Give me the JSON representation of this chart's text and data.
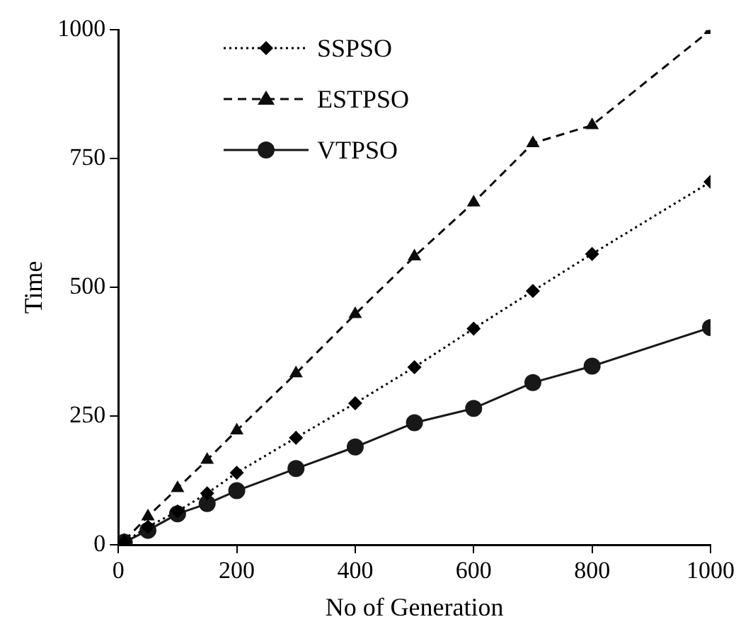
{
  "chart_data": {
    "type": "line",
    "xlabel": "No of Generation",
    "ylabel": "Time",
    "x": [
      10,
      50,
      100,
      150,
      200,
      300,
      400,
      500,
      600,
      700,
      800,
      1000
    ],
    "xlim": [
      0,
      1000
    ],
    "xticks": [
      0,
      200,
      400,
      600,
      800,
      1000
    ],
    "ylim": [
      0,
      1000
    ],
    "yticks": [
      0,
      250,
      500,
      750,
      1000
    ],
    "grid": false,
    "legend": "top left",
    "series": [
      {
        "name": "SSPSO",
        "color": "#000000",
        "marker": "diamond",
        "line_style": "dotted",
        "values": [
          5,
          35,
          65,
          100,
          140,
          208,
          275,
          345,
          420,
          493,
          565,
          705
        ]
      },
      {
        "name": "ESTPSO",
        "color": "#0c0c0c",
        "marker": "triangle",
        "line_style": "dashed",
        "values": [
          8,
          55,
          110,
          165,
          222,
          333,
          448,
          560,
          665,
          780,
          815,
          1000
        ]
      },
      {
        "name": "VTPSO",
        "color": "#181818",
        "marker": "circle",
        "line_style": "solid",
        "values": [
          5,
          28,
          60,
          80,
          105,
          148,
          190,
          237,
          265,
          315,
          347,
          422
        ]
      }
    ]
  }
}
